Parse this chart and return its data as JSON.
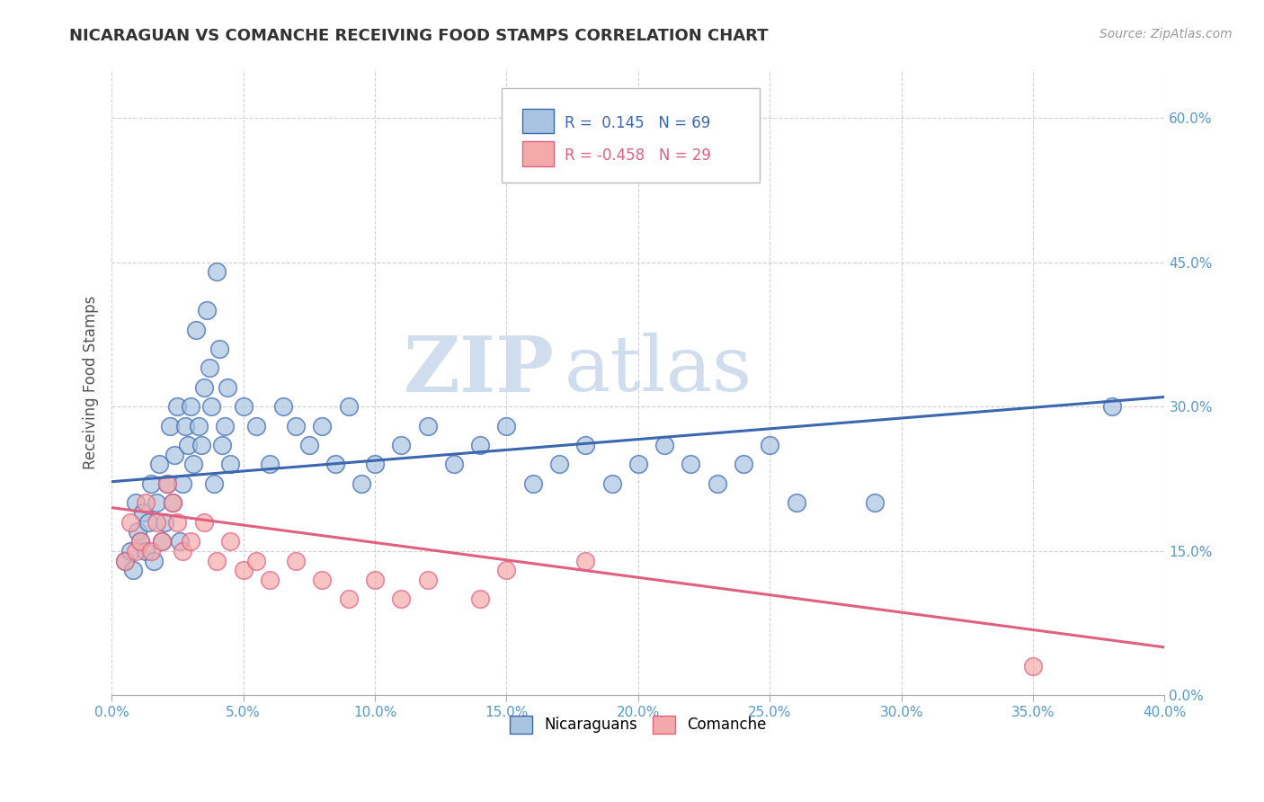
{
  "title": "NICARAGUAN VS COMANCHE RECEIVING FOOD STAMPS CORRELATION CHART",
  "source": "Source: ZipAtlas.com",
  "ylabel": "Receiving Food Stamps",
  "xlim": [
    0.0,
    0.4
  ],
  "ylim": [
    0.0,
    0.65
  ],
  "xticks": [
    0.0,
    0.05,
    0.1,
    0.15,
    0.2,
    0.25,
    0.3,
    0.35,
    0.4
  ],
  "yticks": [
    0.0,
    0.15,
    0.3,
    0.45,
    0.6
  ],
  "xtick_labels": [
    "0.0%",
    "5.0%",
    "10.0%",
    "15.0%",
    "20.0%",
    "25.0%",
    "30.0%",
    "35.0%",
    "40.0%"
  ],
  "ytick_labels": [
    "0.0%",
    "15.0%",
    "30.0%",
    "45.0%",
    "60.0%"
  ],
  "blue_color": "#A8C4E0",
  "pink_color": "#F4AAAA",
  "blue_line_color": "#3A67B0",
  "pink_line_color": "#E06080",
  "background_color": "#FFFFFF",
  "grid_color": "#CCCCCC",
  "title_color": "#333333",
  "watermark_zip": "ZIP",
  "watermark_atlas": "atlas",
  "blue_scatter_x": [
    0.005,
    0.007,
    0.008,
    0.009,
    0.01,
    0.011,
    0.012,
    0.013,
    0.014,
    0.015,
    0.016,
    0.017,
    0.018,
    0.019,
    0.02,
    0.021,
    0.022,
    0.023,
    0.024,
    0.025,
    0.026,
    0.027,
    0.028,
    0.029,
    0.03,
    0.031,
    0.032,
    0.033,
    0.034,
    0.035,
    0.036,
    0.037,
    0.038,
    0.039,
    0.04,
    0.041,
    0.042,
    0.043,
    0.044,
    0.045,
    0.05,
    0.055,
    0.06,
    0.065,
    0.07,
    0.075,
    0.08,
    0.085,
    0.09,
    0.095,
    0.1,
    0.11,
    0.12,
    0.13,
    0.14,
    0.15,
    0.16,
    0.17,
    0.18,
    0.19,
    0.2,
    0.21,
    0.22,
    0.23,
    0.24,
    0.25,
    0.26,
    0.29,
    0.38
  ],
  "blue_scatter_y": [
    0.14,
    0.15,
    0.13,
    0.2,
    0.17,
    0.16,
    0.19,
    0.15,
    0.18,
    0.22,
    0.14,
    0.2,
    0.24,
    0.16,
    0.18,
    0.22,
    0.28,
    0.2,
    0.25,
    0.3,
    0.16,
    0.22,
    0.28,
    0.26,
    0.3,
    0.24,
    0.38,
    0.28,
    0.26,
    0.32,
    0.4,
    0.34,
    0.3,
    0.22,
    0.44,
    0.36,
    0.26,
    0.28,
    0.32,
    0.24,
    0.3,
    0.28,
    0.24,
    0.3,
    0.28,
    0.26,
    0.28,
    0.24,
    0.3,
    0.22,
    0.24,
    0.26,
    0.28,
    0.24,
    0.26,
    0.28,
    0.22,
    0.24,
    0.26,
    0.22,
    0.24,
    0.26,
    0.24,
    0.22,
    0.24,
    0.26,
    0.2,
    0.2,
    0.3
  ],
  "pink_scatter_x": [
    0.005,
    0.007,
    0.009,
    0.011,
    0.013,
    0.015,
    0.017,
    0.019,
    0.021,
    0.023,
    0.025,
    0.027,
    0.03,
    0.035,
    0.04,
    0.045,
    0.05,
    0.055,
    0.06,
    0.07,
    0.08,
    0.09,
    0.1,
    0.11,
    0.12,
    0.14,
    0.15,
    0.18,
    0.35
  ],
  "pink_scatter_y": [
    0.14,
    0.18,
    0.15,
    0.16,
    0.2,
    0.15,
    0.18,
    0.16,
    0.22,
    0.2,
    0.18,
    0.15,
    0.16,
    0.18,
    0.14,
    0.16,
    0.13,
    0.14,
    0.12,
    0.14,
    0.12,
    0.1,
    0.12,
    0.1,
    0.12,
    0.1,
    0.13,
    0.14,
    0.03
  ],
  "blue_line_y_start": 0.222,
  "blue_line_y_end": 0.31,
  "pink_line_y_start": 0.195,
  "pink_line_y_end": 0.05
}
